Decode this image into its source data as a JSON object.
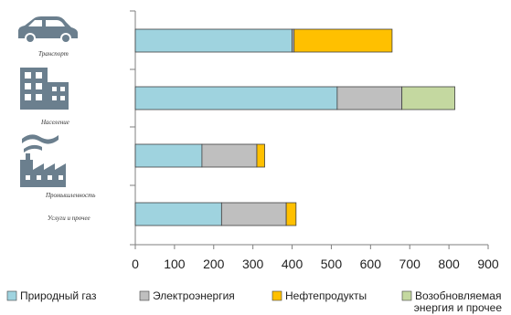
{
  "chart_data": {
    "type": "bar",
    "orientation": "horizontal",
    "stacked": true,
    "categories": [
      "Транспорт",
      "Население",
      "Промышленность",
      "Услуги и прочее"
    ],
    "series": [
      {
        "name": "Природный газ",
        "color": "#9fd3df",
        "values": [
          400,
          515,
          170,
          220
        ]
      },
      {
        "name": "Электроэнергия",
        "color": "#bfbfbf",
        "values": [
          5,
          165,
          140,
          165
        ]
      },
      {
        "name": "Нефтепродукты",
        "color": "#ffc000",
        "values": [
          250,
          0,
          20,
          25
        ]
      },
      {
        "name": "Возобновляемая энергия и прочее",
        "color": "#c4d8a0",
        "values": [
          0,
          135,
          0,
          0
        ]
      }
    ],
    "legend": {
      "position": "bottom",
      "lines": [
        [
          "Природный газ"
        ],
        [
          "Электроэнергия"
        ],
        [
          "Нефтепродукты"
        ],
        [
          "Возобновляемая",
          "энергия и прочее"
        ]
      ]
    },
    "xlim": [
      0,
      900
    ],
    "xticks": [
      0,
      100,
      200,
      300,
      400,
      500,
      600,
      700,
      800,
      900
    ],
    "grid": false,
    "category_icons": [
      "car-icon",
      "apartment-buildings-icon",
      "factory-icon"
    ]
  }
}
